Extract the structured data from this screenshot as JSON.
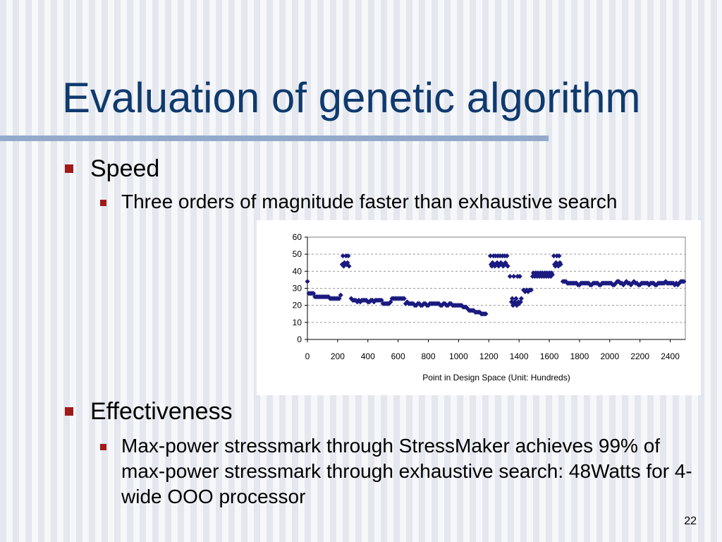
{
  "slide": {
    "title": "Evaluation of genetic algorithm",
    "slide_number": "22",
    "accent_color": "#0f3a6e",
    "bullet_color": "#a11a1a"
  },
  "bullets": {
    "speed": {
      "label": "Speed",
      "sub": "Three orders of magnitude faster than exhaustive search"
    },
    "effectiveness": {
      "label": "Effectiveness",
      "sub": "Max-power stressmark through StressMaker achieves 99% of max-power stressmark through exhaustive search: 48Watts for 4-wide OOO processor"
    }
  },
  "chart_data": {
    "type": "scatter",
    "title": "",
    "xlabel": "Point in Design Space (Unit: Hundreds)",
    "ylabel": "",
    "xlim": [
      0,
      2500
    ],
    "ylim": [
      0,
      60
    ],
    "x_ticks": [
      0,
      200,
      400,
      600,
      800,
      1000,
      1200,
      1400,
      1600,
      1800,
      2000,
      2200,
      2400
    ],
    "y_ticks": [
      0,
      10,
      20,
      30,
      40,
      50,
      60
    ],
    "grid": "horizontal dashed",
    "legend": "none",
    "marker_color": "#1a1a80",
    "points": [
      [
        0,
        34
      ],
      [
        10,
        27
      ],
      [
        20,
        27
      ],
      [
        30,
        27
      ],
      [
        40,
        27
      ],
      [
        50,
        25
      ],
      [
        60,
        25
      ],
      [
        70,
        25
      ],
      [
        80,
        25
      ],
      [
        90,
        25
      ],
      [
        100,
        25
      ],
      [
        110,
        25
      ],
      [
        120,
        25
      ],
      [
        130,
        25
      ],
      [
        140,
        25
      ],
      [
        150,
        24
      ],
      [
        160,
        24
      ],
      [
        170,
        24
      ],
      [
        180,
        24
      ],
      [
        190,
        24
      ],
      [
        200,
        24
      ],
      [
        210,
        24
      ],
      [
        220,
        26
      ],
      [
        230,
        44
      ],
      [
        235,
        49
      ],
      [
        240,
        43
      ],
      [
        245,
        45
      ],
      [
        250,
        44
      ],
      [
        255,
        49
      ],
      [
        260,
        44
      ],
      [
        265,
        45
      ],
      [
        270,
        49
      ],
      [
        275,
        43
      ],
      [
        290,
        24
      ],
      [
        300,
        23
      ],
      [
        310,
        23
      ],
      [
        320,
        23
      ],
      [
        330,
        22
      ],
      [
        340,
        23
      ],
      [
        350,
        22
      ],
      [
        360,
        23
      ],
      [
        370,
        23
      ],
      [
        380,
        23
      ],
      [
        390,
        23
      ],
      [
        400,
        22
      ],
      [
        410,
        22
      ],
      [
        420,
        23
      ],
      [
        430,
        23
      ],
      [
        440,
        22
      ],
      [
        450,
        23
      ],
      [
        460,
        23
      ],
      [
        470,
        23
      ],
      [
        480,
        23
      ],
      [
        490,
        23
      ],
      [
        500,
        21
      ],
      [
        510,
        21
      ],
      [
        520,
        21
      ],
      [
        530,
        21
      ],
      [
        540,
        21
      ],
      [
        550,
        22
      ],
      [
        560,
        24
      ],
      [
        570,
        24
      ],
      [
        580,
        24
      ],
      [
        590,
        24
      ],
      [
        600,
        24
      ],
      [
        610,
        24
      ],
      [
        620,
        24
      ],
      [
        630,
        24
      ],
      [
        640,
        24
      ],
      [
        650,
        21
      ],
      [
        660,
        22
      ],
      [
        670,
        21
      ],
      [
        680,
        21
      ],
      [
        690,
        21
      ],
      [
        700,
        21
      ],
      [
        710,
        20
      ],
      [
        720,
        20
      ],
      [
        730,
        21
      ],
      [
        740,
        21
      ],
      [
        750,
        20
      ],
      [
        760,
        20
      ],
      [
        770,
        21
      ],
      [
        780,
        21
      ],
      [
        790,
        20
      ],
      [
        800,
        20
      ],
      [
        810,
        21
      ],
      [
        820,
        21
      ],
      [
        830,
        21
      ],
      [
        840,
        21
      ],
      [
        850,
        21
      ],
      [
        860,
        21
      ],
      [
        870,
        21
      ],
      [
        880,
        20
      ],
      [
        890,
        20
      ],
      [
        900,
        21
      ],
      [
        910,
        21
      ],
      [
        920,
        20
      ],
      [
        930,
        20
      ],
      [
        940,
        21
      ],
      [
        950,
        21
      ],
      [
        960,
        20
      ],
      [
        970,
        20
      ],
      [
        980,
        20
      ],
      [
        990,
        20
      ],
      [
        1000,
        20
      ],
      [
        1010,
        20
      ],
      [
        1020,
        20
      ],
      [
        1030,
        19
      ],
      [
        1040,
        19
      ],
      [
        1050,
        19
      ],
      [
        1060,
        18
      ],
      [
        1070,
        17
      ],
      [
        1080,
        17
      ],
      [
        1090,
        17
      ],
      [
        1100,
        17
      ],
      [
        1110,
        16
      ],
      [
        1120,
        16
      ],
      [
        1130,
        16
      ],
      [
        1140,
        16
      ],
      [
        1150,
        15
      ],
      [
        1160,
        15
      ],
      [
        1170,
        15
      ],
      [
        1180,
        15
      ],
      [
        1210,
        49
      ],
      [
        1215,
        44
      ],
      [
        1220,
        43
      ],
      [
        1225,
        45
      ],
      [
        1230,
        49
      ],
      [
        1235,
        44
      ],
      [
        1240,
        43
      ],
      [
        1245,
        49
      ],
      [
        1250,
        44
      ],
      [
        1255,
        45
      ],
      [
        1260,
        49
      ],
      [
        1265,
        43
      ],
      [
        1270,
        44
      ],
      [
        1275,
        49
      ],
      [
        1280,
        45
      ],
      [
        1285,
        44
      ],
      [
        1290,
        49
      ],
      [
        1295,
        43
      ],
      [
        1300,
        44
      ],
      [
        1305,
        49
      ],
      [
        1310,
        45
      ],
      [
        1315,
        44
      ],
      [
        1320,
        49
      ],
      [
        1325,
        43
      ],
      [
        1340,
        37
      ],
      [
        1350,
        22
      ],
      [
        1355,
        24
      ],
      [
        1360,
        20
      ],
      [
        1365,
        37
      ],
      [
        1370,
        22
      ],
      [
        1375,
        21
      ],
      [
        1380,
        24
      ],
      [
        1385,
        20
      ],
      [
        1390,
        37
      ],
      [
        1395,
        22
      ],
      [
        1400,
        21
      ],
      [
        1405,
        37
      ],
      [
        1410,
        22
      ],
      [
        1415,
        24
      ],
      [
        1430,
        29
      ],
      [
        1440,
        28
      ],
      [
        1450,
        29
      ],
      [
        1460,
        28
      ],
      [
        1470,
        29
      ],
      [
        1480,
        29
      ],
      [
        1490,
        37
      ],
      [
        1495,
        39
      ],
      [
        1500,
        38
      ],
      [
        1505,
        37
      ],
      [
        1510,
        39
      ],
      [
        1515,
        38
      ],
      [
        1520,
        37
      ],
      [
        1525,
        39
      ],
      [
        1530,
        38
      ],
      [
        1535,
        37
      ],
      [
        1540,
        39
      ],
      [
        1545,
        38
      ],
      [
        1550,
        37
      ],
      [
        1555,
        39
      ],
      [
        1560,
        38
      ],
      [
        1565,
        37
      ],
      [
        1570,
        39
      ],
      [
        1575,
        38
      ],
      [
        1580,
        37
      ],
      [
        1585,
        39
      ],
      [
        1590,
        38
      ],
      [
        1595,
        37
      ],
      [
        1600,
        39
      ],
      [
        1605,
        38
      ],
      [
        1610,
        37
      ],
      [
        1615,
        39
      ],
      [
        1620,
        38
      ],
      [
        1630,
        49
      ],
      [
        1635,
        44
      ],
      [
        1640,
        43
      ],
      [
        1645,
        45
      ],
      [
        1650,
        49
      ],
      [
        1655,
        44
      ],
      [
        1660,
        43
      ],
      [
        1665,
        49
      ],
      [
        1670,
        45
      ],
      [
        1675,
        44
      ],
      [
        1690,
        34
      ],
      [
        1700,
        34
      ],
      [
        1710,
        34
      ],
      [
        1720,
        33
      ],
      [
        1730,
        33
      ],
      [
        1740,
        33
      ],
      [
        1750,
        33
      ],
      [
        1760,
        33
      ],
      [
        1770,
        33
      ],
      [
        1780,
        33
      ],
      [
        1790,
        32
      ],
      [
        1800,
        32
      ],
      [
        1810,
        33
      ],
      [
        1820,
        33
      ],
      [
        1830,
        33
      ],
      [
        1840,
        33
      ],
      [
        1850,
        33
      ],
      [
        1860,
        33
      ],
      [
        1870,
        32
      ],
      [
        1880,
        32
      ],
      [
        1890,
        33
      ],
      [
        1900,
        33
      ],
      [
        1910,
        33
      ],
      [
        1920,
        33
      ],
      [
        1930,
        32
      ],
      [
        1940,
        32
      ],
      [
        1950,
        33
      ],
      [
        1960,
        33
      ],
      [
        1970,
        33
      ],
      [
        1980,
        33
      ],
      [
        1990,
        33
      ],
      [
        2000,
        33
      ],
      [
        2010,
        33
      ],
      [
        2020,
        32
      ],
      [
        2030,
        32
      ],
      [
        2040,
        33
      ],
      [
        2050,
        34
      ],
      [
        2060,
        34
      ],
      [
        2070,
        33
      ],
      [
        2080,
        33
      ],
      [
        2090,
        32
      ],
      [
        2100,
        33
      ],
      [
        2110,
        34
      ],
      [
        2120,
        33
      ],
      [
        2130,
        33
      ],
      [
        2140,
        32
      ],
      [
        2150,
        33
      ],
      [
        2160,
        34
      ],
      [
        2170,
        33
      ],
      [
        2180,
        33
      ],
      [
        2190,
        32
      ],
      [
        2200,
        32
      ],
      [
        2210,
        33
      ],
      [
        2220,
        33
      ],
      [
        2230,
        33
      ],
      [
        2240,
        33
      ],
      [
        2250,
        33
      ],
      [
        2260,
        32
      ],
      [
        2270,
        33
      ],
      [
        2280,
        33
      ],
      [
        2290,
        33
      ],
      [
        2300,
        32
      ],
      [
        2310,
        32
      ],
      [
        2320,
        33
      ],
      [
        2330,
        33
      ],
      [
        2340,
        33
      ],
      [
        2350,
        33
      ],
      [
        2360,
        33
      ],
      [
        2370,
        34
      ],
      [
        2380,
        33
      ],
      [
        2390,
        33
      ],
      [
        2400,
        33
      ],
      [
        2410,
        33
      ],
      [
        2420,
        33
      ],
      [
        2430,
        32
      ],
      [
        2440,
        33
      ],
      [
        2450,
        32
      ],
      [
        2460,
        33
      ],
      [
        2470,
        34
      ],
      [
        2480,
        34
      ],
      [
        2490,
        34
      ]
    ]
  }
}
